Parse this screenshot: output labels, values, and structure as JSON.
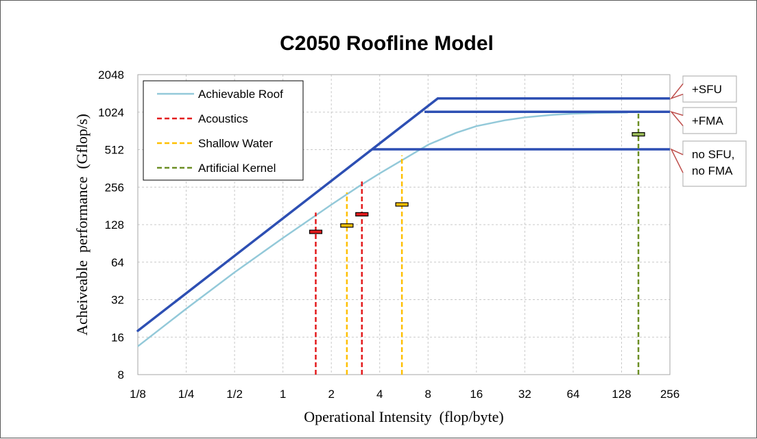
{
  "chart_data": {
    "type": "line",
    "title": "C2050 Roofline Model",
    "xlabel": "Operational Intensity  (flop/byte)",
    "ylabel": "Acheiveable  performance  (Gflop/s)",
    "x_scale": "log2",
    "y_scale": "log2",
    "xlim": [
      0.125,
      256
    ],
    "ylim": [
      8,
      2048
    ],
    "x_ticks": [
      {
        "value": 0.125,
        "label": "1/8"
      },
      {
        "value": 0.25,
        "label": "1/4"
      },
      {
        "value": 0.5,
        "label": "1/2"
      },
      {
        "value": 1,
        "label": "1"
      },
      {
        "value": 2,
        "label": "2"
      },
      {
        "value": 4,
        "label": "4"
      },
      {
        "value": 8,
        "label": "8"
      },
      {
        "value": 16,
        "label": "16"
      },
      {
        "value": 32,
        "label": "32"
      },
      {
        "value": 64,
        "label": "64"
      },
      {
        "value": 128,
        "label": "128"
      },
      {
        "value": 256,
        "label": "256"
      }
    ],
    "y_ticks": [
      {
        "value": 8,
        "label": "8"
      },
      {
        "value": 16,
        "label": "16"
      },
      {
        "value": 32,
        "label": "32"
      },
      {
        "value": 64,
        "label": "64"
      },
      {
        "value": 128,
        "label": "128"
      },
      {
        "value": 256,
        "label": "256"
      },
      {
        "value": 512,
        "label": "512"
      },
      {
        "value": 1024,
        "label": "1024"
      },
      {
        "value": 2048,
        "label": "2048"
      }
    ],
    "grid": true,
    "legend_position": "top-left",
    "colors": {
      "roof": "#2d4fb3",
      "achievable": "#93c9d9",
      "acoustics": "#e31a1c",
      "shallow": "#ffc000",
      "artificial": "#6b8e23"
    },
    "bandwidth_roof": {
      "x": [
        0.125,
        9.2
      ],
      "y": [
        18,
        1320
      ]
    },
    "compute_roofs": [
      {
        "label": "+SFU",
        "x_start": 9.2,
        "x_end": 256,
        "y": 1320
      },
      {
        "label": "+FMA",
        "x_start": 7.6,
        "x_end": 256,
        "y": 1030
      },
      {
        "label": "no SFU,\nno FMA",
        "x_start": 3.6,
        "x_end": 256,
        "y": 515
      }
    ],
    "series": [
      {
        "name": "Achievable Roof",
        "style": "solid",
        "x": [
          0.125,
          0.25,
          0.5,
          1,
          2,
          3,
          4,
          5.5,
          8,
          12,
          16,
          24,
          32,
          48,
          64,
          96,
          128,
          140
        ],
        "y": [
          13.5,
          27,
          53,
          100,
          185,
          262,
          330,
          420,
          560,
          700,
          790,
          880,
          930,
          975,
          995,
          1010,
          1015,
          1017
        ]
      },
      {
        "name": "Acoustics",
        "style": "dashed",
        "x": [
          1.6,
          3.1
        ],
        "y_top": [
          160,
          285
        ],
        "y_measured": [
          112,
          155
        ]
      },
      {
        "name": "Shallow Water",
        "style": "dashed",
        "x": [
          2.5,
          5.5
        ],
        "y_top": [
          232,
          460
        ],
        "y_measured": [
          126,
          186
        ]
      },
      {
        "name": "Artificial Kernel",
        "style": "dashed",
        "x": [
          163
        ],
        "y_top": [
          1015
        ],
        "y_measured": [
          680
        ]
      }
    ]
  }
}
